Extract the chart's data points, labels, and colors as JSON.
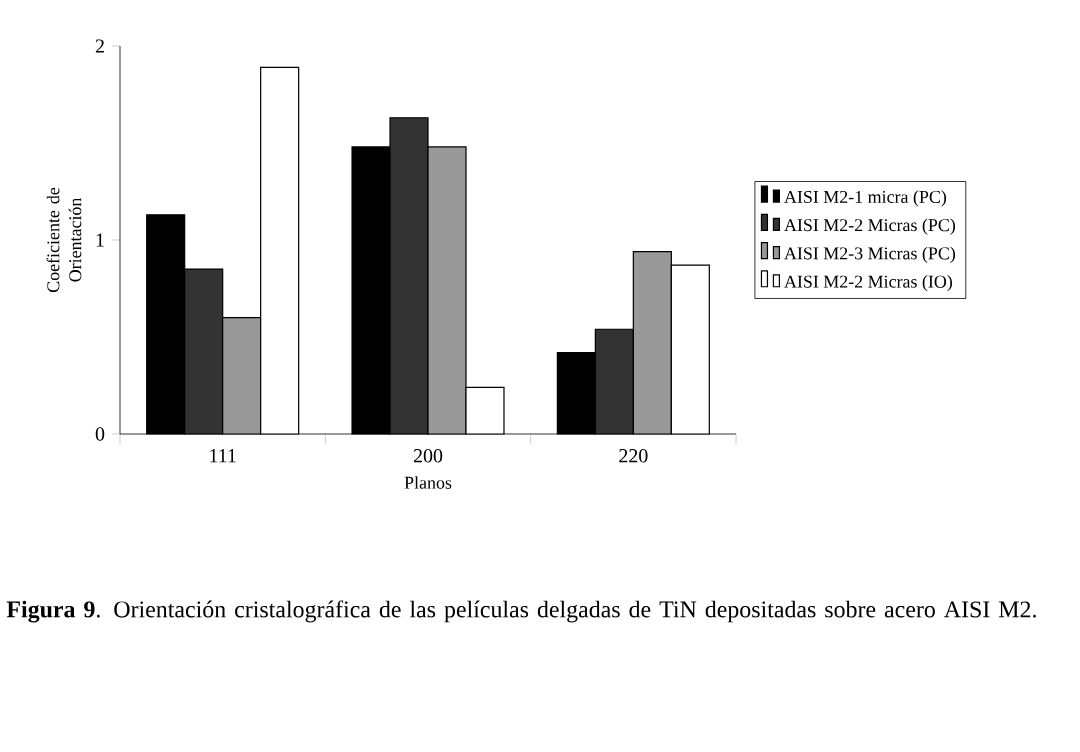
{
  "chart_data": {
    "type": "bar",
    "xlabel": "Planos",
    "ylabel": "Coeficiente de Orientación",
    "categories": [
      "111",
      "200",
      "220"
    ],
    "series": [
      {
        "name": "AISI M2-1 micra (PC)",
        "color": "#000000",
        "values": [
          1.13,
          1.48,
          0.42
        ]
      },
      {
        "name": "AISI M2-2 Micras (PC)",
        "color": "#333333",
        "values": [
          0.85,
          1.63,
          0.54
        ]
      },
      {
        "name": "AISI M2-3 Micras (PC)",
        "color": "#999999",
        "values": [
          0.6,
          1.48,
          0.94
        ]
      },
      {
        "name": "AISI M2-2 Micras (IO)",
        "color": "#ffffff",
        "values": [
          1.89,
          0.24,
          0.87
        ]
      }
    ],
    "ylim": [
      0,
      2
    ],
    "yticks": [
      0,
      1,
      2
    ],
    "legend": "right",
    "annotations": [
      "**Figura 9**. Orientación cristalográfica de las películas delgadas de TiN depositadas sobre acero AISI M2."
    ]
  }
}
